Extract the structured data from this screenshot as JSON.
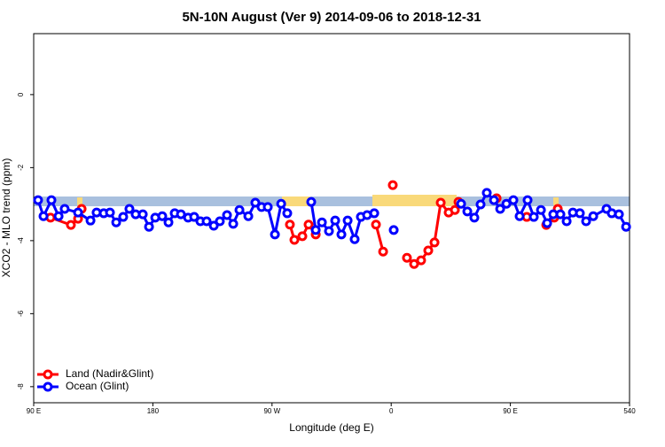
{
  "chart_data": {
    "type": "line",
    "title": "5N-10N August (Ver 9)   2014-09-06 to 2018-12-31",
    "x_label": "Longitude (deg E)",
    "y_label": "XCO2 - MLO trend (ppm)",
    "xlim": [
      90,
      540
    ],
    "xticks": [
      {
        "value": 90,
        "label": "90 E"
      },
      180,
      {
        "value": 270,
        "label": "90 W"
      },
      {
        "value": 360,
        "label": "0"
      },
      {
        "value": 450,
        "label": "90 E"
      },
      540
    ],
    "ylim": [
      1.67,
      -8.44
    ],
    "yticks": [
      0,
      -2,
      -4,
      -6,
      -8
    ],
    "legend": "bottom-left",
    "series": [
      {
        "name": "Land (Nadir&Glint)",
        "color": "#ff0000",
        "x": [
          102.7,
          118.1,
          123.5,
          126.2,
          null,
          283.5,
          286.9,
          292.9,
          297.6,
          303,
          null,
          348.5,
          353.9,
          null,
          361.2,
          null,
          371.9,
          377.3,
          382.6,
          388,
          392.7,
          397.4,
          403.4,
          408.1,
          410.8,
          null,
          439.6,
          null,
          462.4,
          null,
          477.1,
          483.1,
          485.8
        ],
        "values": [
          -3.37,
          -3.57,
          -3.4,
          -3.13,
          null,
          -3.56,
          -3.98,
          -3.88,
          -3.56,
          -3.83,
          null,
          -3.56,
          -4.3,
          null,
          -2.48,
          null,
          -4.47,
          -4.64,
          -4.54,
          -4.27,
          -4.05,
          -2.96,
          -3.23,
          -3.16,
          -2.94,
          null,
          -2.84,
          null,
          -3.35,
          null,
          -3.57,
          -3.37,
          -3.13
        ]
      },
      {
        "name": "Ocean (Glint)",
        "color": "#0000ff",
        "x": [
          93.3,
          97.4,
          103.4,
          108.8,
          113.4,
          123.5,
          132.9,
          137.5,
          142.9,
          147.6,
          152.3,
          157.6,
          162.3,
          167,
          172.4,
          177.1,
          181.8,
          187.1,
          191.8,
          196.5,
          201.2,
          206.6,
          211.2,
          215.9,
          220.6,
          226,
          230.6,
          236,
          240.7,
          245.4,
          252.1,
          257.4,
          262.1,
          266.8,
          272.2,
          276.9,
          281.5,
          null,
          299.6,
          303,
          307.7,
          313,
          317.7,
          322.4,
          327.1,
          332.4,
          337.1,
          341.8,
          347.2,
          null,
          361.9,
          null,
          412.8,
          417.5,
          422.8,
          427.5,
          432.2,
          437.6,
          442.3,
          447,
          452.3,
          457,
          463,
          467.7,
          473.1,
          477.8,
          482.4,
          487.8,
          492.5,
          497.2,
          502.5,
          507.2,
          512.6,
          522.6,
          526.6,
          532,
          537.4
        ],
        "values": [
          -2.89,
          -3.33,
          -2.89,
          -3.33,
          -3.13,
          -3.23,
          -3.45,
          -3.23,
          -3.25,
          -3.23,
          -3.5,
          -3.35,
          -3.13,
          -3.28,
          -3.28,
          -3.62,
          -3.37,
          -3.33,
          -3.5,
          -3.25,
          -3.28,
          -3.37,
          -3.35,
          -3.47,
          -3.47,
          -3.59,
          -3.47,
          -3.3,
          -3.54,
          -3.16,
          -3.33,
          -2.96,
          -3.08,
          -3.08,
          -3.83,
          -2.99,
          -3.25,
          null,
          -2.94,
          -3.71,
          -3.5,
          -3.74,
          -3.45,
          -3.83,
          -3.45,
          -3.96,
          -3.35,
          -3.3,
          -3.25,
          null,
          -3.71,
          null,
          -2.99,
          -3.2,
          -3.37,
          -3.01,
          -2.69,
          -2.89,
          -3.13,
          -2.99,
          -2.89,
          -3.33,
          -2.89,
          -3.35,
          -3.16,
          -3.52,
          -3.28,
          -3.28,
          -3.47,
          -3.23,
          -3.25,
          -3.47,
          -3.33,
          -3.13,
          -3.25,
          -3.28,
          -3.62
        ]
      }
    ]
  }
}
